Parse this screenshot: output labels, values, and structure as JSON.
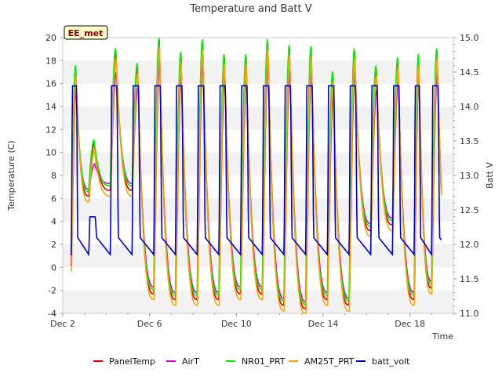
{
  "chart_data": {
    "type": "line",
    "title": "Temperature and Batt V",
    "xlabel": "Time",
    "ylabel_left": "Temperature (C)",
    "ylabel_right": "Batt V",
    "badge": "EE_met",
    "x_ticks": [
      "Dec 2",
      "Dec 6",
      "Dec 10",
      "Dec 14",
      "Dec 18"
    ],
    "x_tick_days": [
      2,
      6,
      10,
      14,
      18
    ],
    "xlim": [
      2,
      20
    ],
    "ylim_left": [
      -4,
      20
    ],
    "ylim_right": [
      11.0,
      15.0
    ],
    "y_ticks_left": [
      "-4",
      "-2",
      "0",
      "2",
      "4",
      "6",
      "8",
      "10",
      "12",
      "14",
      "16",
      "18",
      "20"
    ],
    "y_ticks_right": [
      "11.0",
      "11.5",
      "12.0",
      "12.5",
      "13.0",
      "13.5",
      "14.0",
      "14.5",
      "15.0"
    ],
    "grid": "horizontal bands",
    "legend_position": "bottom",
    "days": [
      2.4,
      3.2,
      4.2,
      5.2,
      6.2,
      7.2,
      8.2,
      9.2,
      10.2,
      11.2,
      12.2,
      13.2,
      14.2,
      15.2,
      16.2,
      17.2,
      18.2,
      19.0
    ],
    "daily": {
      "max": [
        17.0,
        10.5,
        18.5,
        17.2,
        19.5,
        18.2,
        19.3,
        18.0,
        18.0,
        19.3,
        18.8,
        18.7,
        16.5,
        18.5,
        17.0,
        17.7,
        18.0,
        18.5
      ],
      "min": [
        0.0,
        6.0,
        6.5,
        6.5,
        -2.5,
        -3.0,
        -3.0,
        -3.0,
        -2.5,
        -2.5,
        -3.5,
        -3.8,
        -3.0,
        -3.5,
        3.0,
        3.5,
        -3.0,
        -2.0
      ]
    },
    "series": [
      {
        "name": "PanelTemp",
        "color": "#dd0000",
        "offset": [
          0.3,
          0.2
        ],
        "phase": 0.0
      },
      {
        "name": "AirT",
        "color": "#dd00dd",
        "offset": [
          -1.5,
          0.8
        ],
        "phase": 0.02
      },
      {
        "name": "NR01_PRT",
        "color": "#00ee00",
        "offset": [
          0.6,
          0.6
        ],
        "phase": -0.01
      },
      {
        "name": "AM25T_PRT",
        "color": "#ffa500",
        "offset": [
          -0.3,
          -0.3
        ],
        "phase": 0.01
      },
      {
        "name": "batt_volt",
        "color": "#0000cc",
        "axis": "right",
        "night_level": 11.85,
        "peak": 14.3
      }
    ]
  }
}
